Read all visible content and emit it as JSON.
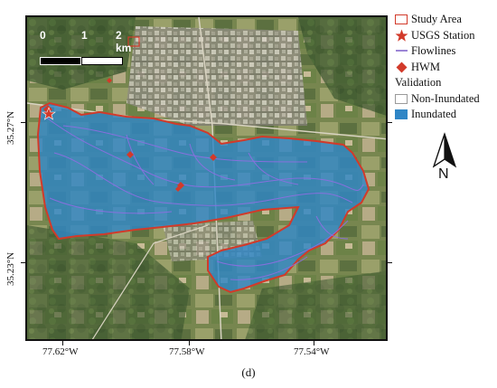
{
  "map": {
    "scale_bar": {
      "labels": [
        "0",
        "1",
        "2 km"
      ]
    },
    "lon_ticks": [
      "77.62°W",
      "77.58°W",
      "77.54°W"
    ],
    "lat_ticks": [
      "35.27°N",
      "35.23°N"
    ]
  },
  "legend": {
    "items": [
      {
        "label": "Study Area",
        "symbol": "rect-outline",
        "color": "#d23a2a"
      },
      {
        "label": "USGS Station",
        "symbol": "star",
        "color": "#d23a2a"
      },
      {
        "label": "Flowlines",
        "symbol": "line",
        "color": "#7b5cc9"
      },
      {
        "label": "HWM",
        "symbol": "diamond",
        "color": "#d23a2a"
      }
    ],
    "validation_heading": "Validation",
    "validation_items": [
      {
        "label": "Non-Inundated",
        "symbol": "rect-fill",
        "color": "#ffffff"
      },
      {
        "label": "Inundated",
        "symbol": "rect-fill",
        "color": "#2f86c6"
      }
    ]
  },
  "north_arrow": {
    "label": "N"
  },
  "caption": "(d)",
  "colors": {
    "imagery_base": "#6f7f4f",
    "inundated": "#2f86c6",
    "boundary": "#d23a2a",
    "flowline": "#7b5cc9"
  }
}
